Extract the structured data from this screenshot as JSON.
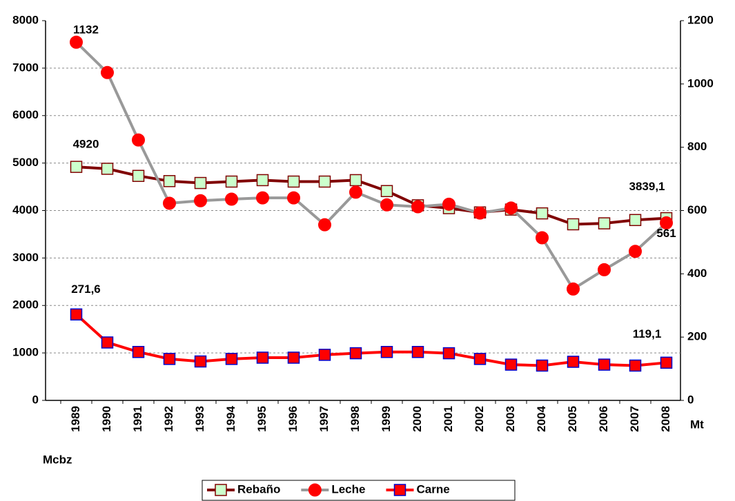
{
  "chart_data": {
    "type": "line",
    "categories": [
      "1989",
      "1990",
      "1991",
      "1992",
      "1993",
      "1994",
      "1995",
      "1996",
      "1997",
      "1998",
      "1999",
      "2000",
      "2001",
      "2002",
      "2003",
      "2004",
      "2005",
      "2006",
      "2007",
      "2008"
    ],
    "ylabel": "Mcbz",
    "y2label": "Mt",
    "ylim": [
      0,
      8000
    ],
    "yticks": [
      0,
      1000,
      2000,
      3000,
      4000,
      5000,
      6000,
      7000,
      8000
    ],
    "y2lim": [
      0,
      1200
    ],
    "y2ticks": [
      0,
      200,
      400,
      600,
      800,
      1000,
      1200
    ],
    "grid": true,
    "legend": "bottom",
    "series": [
      {
        "name": "Rebaño",
        "color": "#800000",
        "marker": "square",
        "marker_fill": "#ccffcc",
        "marker_stroke": "#800000",
        "values": [
          4920,
          4880,
          4730,
          4620,
          4580,
          4610,
          4640,
          4610,
          4610,
          4640,
          4410,
          4110,
          4050,
          3960,
          4020,
          3940,
          3710,
          3730,
          3800,
          3839.1
        ],
        "value_labels": [
          "4920",
          null,
          null,
          null,
          null,
          null,
          null,
          null,
          null,
          null,
          null,
          null,
          null,
          null,
          null,
          null,
          null,
          null,
          null,
          "3839,1"
        ]
      },
      {
        "name": "Leche",
        "color": "#999999",
        "marker": "circle",
        "marker_fill": "#ff0000",
        "marker_stroke": "#ff0000",
        "axis": "y2",
        "values": [
          1132,
          1036,
          823,
          623,
          631,
          636,
          640,
          640,
          555,
          658,
          618,
          612,
          620,
          592,
          608,
          514,
          352,
          413,
          471,
          561
        ],
        "value_labels": [
          "1132",
          null,
          null,
          null,
          null,
          null,
          null,
          null,
          null,
          null,
          null,
          null,
          null,
          null,
          null,
          null,
          null,
          null,
          null,
          "561"
        ]
      },
      {
        "name": "Carne",
        "color": "#ff0000",
        "marker": "square",
        "marker_fill": "#ff0000",
        "marker_stroke": "#0000cc",
        "axis": "y2",
        "values": [
          271.6,
          183,
          153,
          131,
          123,
          131,
          135,
          135,
          144,
          149,
          153,
          153,
          149,
          131,
          113,
          110,
          122,
          113,
          110,
          119.1
        ],
        "value_labels": [
          "271,6",
          null,
          null,
          null,
          null,
          null,
          null,
          null,
          null,
          null,
          null,
          null,
          null,
          null,
          null,
          null,
          null,
          null,
          null,
          "119,1"
        ]
      }
    ]
  }
}
